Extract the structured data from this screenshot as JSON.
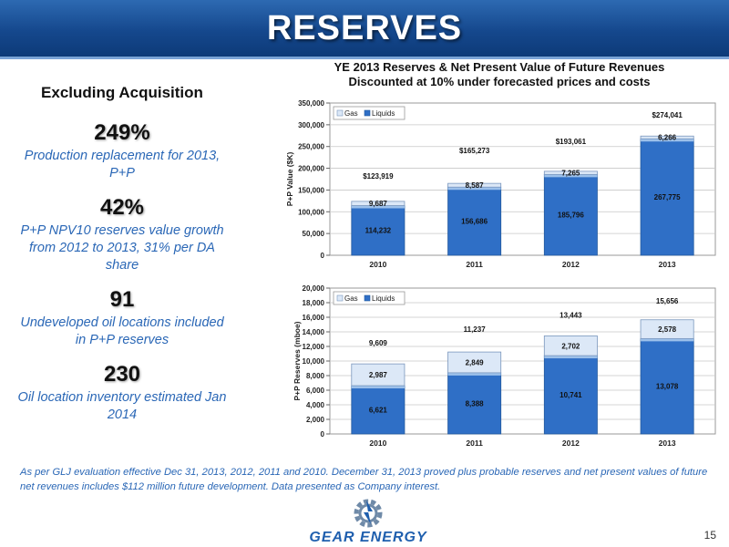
{
  "slide": {
    "title": "RESERVES",
    "page_number": "15"
  },
  "left_panel": {
    "heading": "Excluding Acquisition",
    "stats": [
      {
        "value": "249%",
        "text": "Production replacement for 2013, P+P"
      },
      {
        "value": "42%",
        "text": "P+P NPV10 reserves value growth from 2012 to 2013, 31% per DA share"
      },
      {
        "value": "91",
        "text": "Undeveloped oil locations included in P+P reserves"
      },
      {
        "value": "230",
        "text": "Oil location inventory estimated Jan 2014"
      }
    ]
  },
  "chart_title": {
    "line1": "YE 2013 Reserves & Net Present Value of Future Revenues",
    "line2": "Discounted at 10% under forecasted prices and costs"
  },
  "footnote": "As per GLJ evaluation effective Dec 31, 2013, 2012, 2011 and 2010. December 31, 2013 proved plus probable reserves and net present values of future net revenues includes $112 million future development. Data presented as Company interest.",
  "logo": {
    "text": "GEAR ENERGY"
  },
  "colors": {
    "title_bar": "#15488d",
    "liquids": "#2f6fc6",
    "gas": "#dce8f7",
    "stat_text": "#2a67b6"
  },
  "chart_data": [
    {
      "type": "bar",
      "stacked": true,
      "categories": [
        "2010",
        "2011",
        "2012",
        "2013"
      ],
      "series": [
        {
          "name": "Liquids",
          "values": [
            114232,
            156686,
            185796,
            267775
          ],
          "labels": [
            "114,232",
            "156,686",
            "185,796",
            "267,775"
          ]
        },
        {
          "name": "Gas",
          "values": [
            9687,
            8587,
            7265,
            6266
          ],
          "labels": [
            "9,687",
            "8,587",
            "7,265",
            "6,266"
          ]
        }
      ],
      "totals": [
        "$123,919",
        "$165,273",
        "$193,061",
        "$274,041"
      ],
      "ylabel": "P+P Value ($K)",
      "ylim": [
        0,
        350000
      ],
      "yticks": [
        "0",
        "50,000",
        "100,000",
        "150,000",
        "200,000",
        "250,000",
        "300,000",
        "350,000"
      ],
      "legend": "top-left"
    },
    {
      "type": "bar",
      "stacked": true,
      "categories": [
        "2010",
        "2011",
        "2012",
        "2013"
      ],
      "series": [
        {
          "name": "Liquids",
          "values": [
            6621,
            8388,
            10741,
            13078
          ],
          "labels": [
            "6,621",
            "8,388",
            "10,741",
            "13,078"
          ]
        },
        {
          "name": "Gas",
          "values": [
            2987,
            2849,
            2702,
            2578
          ],
          "labels": [
            "2,987",
            "2,849",
            "2,702",
            "2,578"
          ]
        }
      ],
      "totals": [
        "9,609",
        "11,237",
        "13,443",
        "15,656"
      ],
      "ylabel": "P+P Reserves (mboe)",
      "ylim": [
        0,
        20000
      ],
      "yticks": [
        "0",
        "2,000",
        "4,000",
        "6,000",
        "8,000",
        "10,000",
        "12,000",
        "14,000",
        "16,000",
        "18,000",
        "20,000"
      ],
      "legend": "top-left"
    }
  ]
}
